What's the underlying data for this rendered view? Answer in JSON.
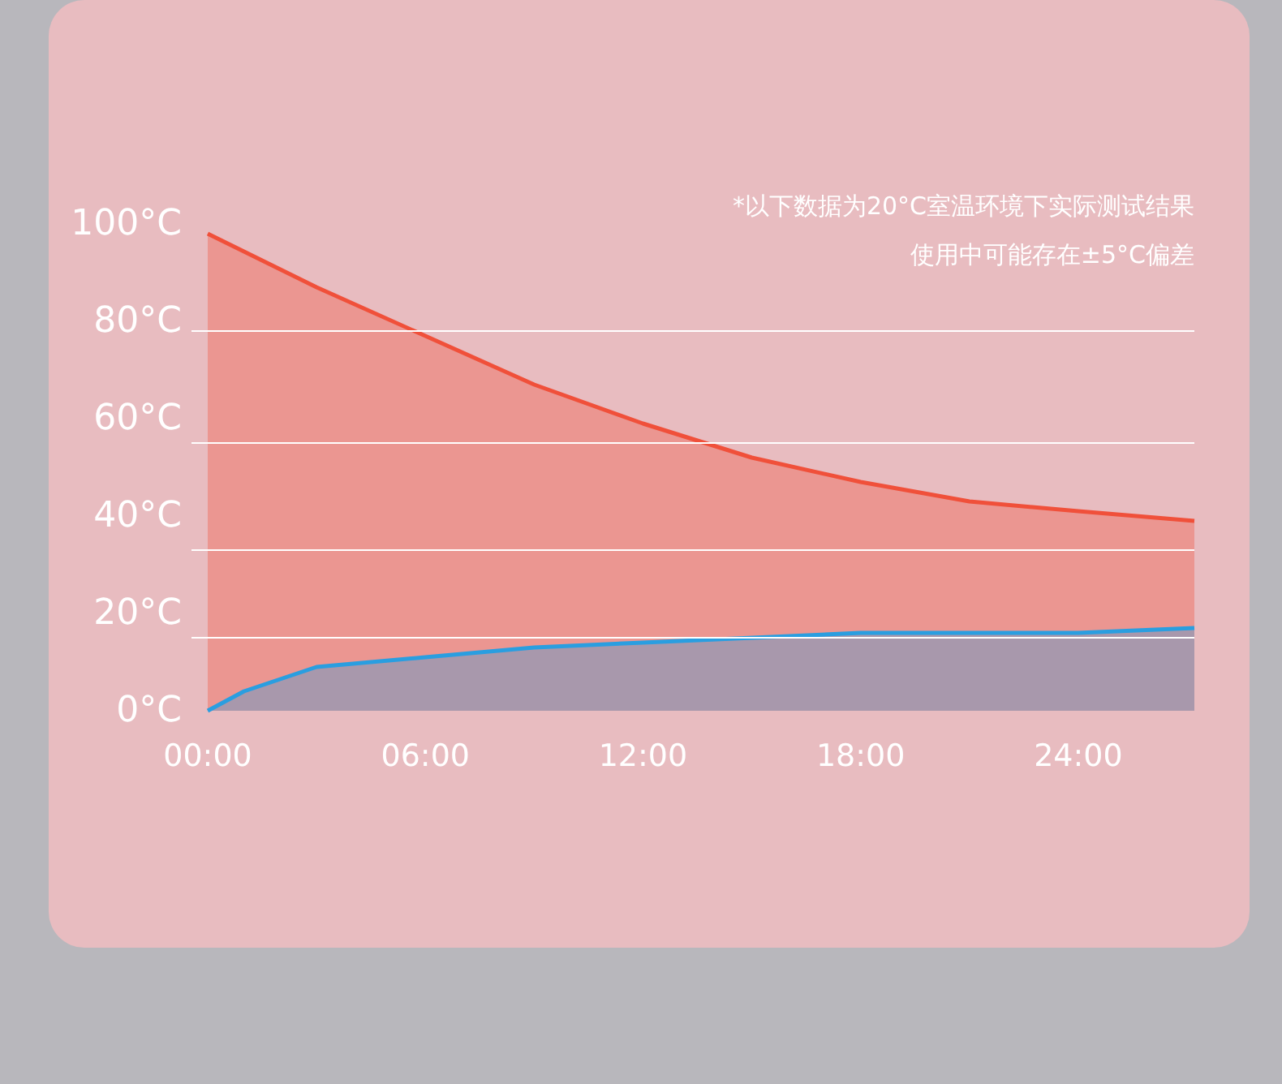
{
  "chart_data": {
    "type": "area",
    "annotations": [
      "*以下数据为20°C室温环境下实际测试结果",
      "使用中可能存在±5°C偏差"
    ],
    "xlim": [
      0,
      27.2
    ],
    "xticks": [
      {
        "value": 0,
        "label": "00:00"
      },
      {
        "value": 6,
        "label": "06:00"
      },
      {
        "value": 12,
        "label": "12:00"
      },
      {
        "value": 18,
        "label": "18:00"
      },
      {
        "value": 24,
        "label": "24:00"
      }
    ],
    "ylim": [
      0,
      100
    ],
    "yticks": [
      {
        "value": 0,
        "label": "0°C"
      },
      {
        "value": 20,
        "label": "20°C"
      },
      {
        "value": 40,
        "label": "40°C"
      },
      {
        "value": 60,
        "label": "60°C"
      },
      {
        "value": 80,
        "label": "80°C"
      },
      {
        "value": 100,
        "label": "100°C"
      }
    ],
    "ref_lines": [
      {
        "axis": "y",
        "value": 78,
        "color": "#ffffff"
      },
      {
        "axis": "y",
        "value": 55,
        "color": "#ffffff"
      },
      {
        "axis": "y",
        "value": 33,
        "color": "#ffffff"
      },
      {
        "axis": "y",
        "value": 15,
        "color": "#ffffff"
      }
    ],
    "series": [
      {
        "color": "#f0503a",
        "x": [
          0,
          3,
          6,
          9,
          12,
          15,
          18,
          21,
          24,
          27.2
        ],
        "values": [
          98,
          87,
          77,
          67,
          59,
          52,
          47,
          43,
          41,
          39
        ]
      },
      {
        "color": "#2a9ee0",
        "x": [
          0,
          1,
          3,
          6,
          9,
          12,
          18,
          24,
          27.2
        ],
        "values": [
          0,
          4,
          9,
          11,
          13,
          14,
          16,
          16,
          17
        ]
      }
    ]
  }
}
